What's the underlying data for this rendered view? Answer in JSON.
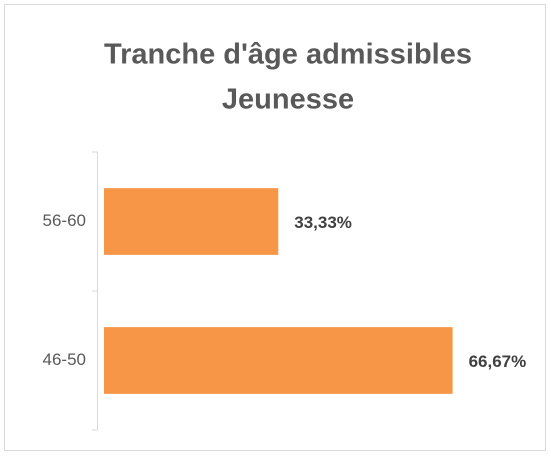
{
  "chart_data": {
    "type": "hbar",
    "title": [
      "Tranche d'âge admissibles",
      "Jeunesse"
    ],
    "categories": [
      "56-60",
      "46-50"
    ],
    "values": [
      33.33,
      66.67
    ],
    "value_labels": [
      "33,33%",
      "66,67%"
    ],
    "color": "#f79646",
    "xlim": [
      0,
      70
    ]
  }
}
